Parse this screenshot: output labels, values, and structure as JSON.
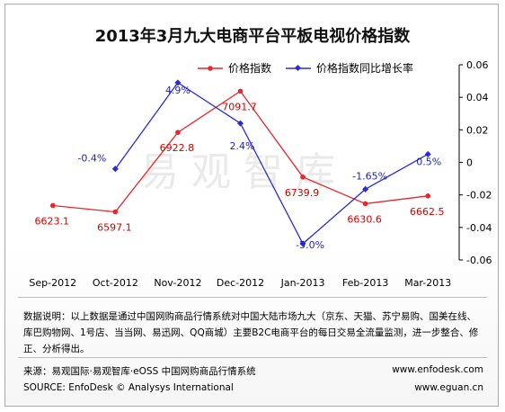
{
  "title": "2013年3月九大电商平台平板电视价格指数",
  "watermark": "易观智库",
  "chart_data": {
    "type": "line",
    "title": "2013年3月九大电商平台平板电视价格指数",
    "categories": [
      "Sep-2012",
      "Oct-2012",
      "Nov-2012",
      "Dec-2012",
      "Jan-2013",
      "Feb-2013",
      "Mar-2013"
    ],
    "series": [
      {
        "name": "价格指数",
        "axis": "left",
        "color": "#e8262b",
        "values": [
          6623.1,
          6597.1,
          6922.8,
          7091.7,
          6739.9,
          6630.6,
          6662.5
        ],
        "labels": [
          "6623.1",
          "6597.1",
          "6922.8",
          "7091.7",
          "6739.9",
          "6630.6",
          "6662.5"
        ]
      },
      {
        "name": "价格指数同比增长率",
        "axis": "right",
        "color": "#2b2bd9",
        "values": [
          null,
          -0.004,
          0.049,
          0.024,
          -0.05,
          -0.0165,
          0.005
        ],
        "labels": [
          "",
          "-0.4%",
          "4.9%",
          "2.4%",
          "-5.0%",
          "-1.65%",
          "0.5%"
        ]
      }
    ],
    "y_left_range": [
      6400,
      7200
    ],
    "y_right_range": [
      -0.06,
      0.06
    ],
    "y_right_ticks": [
      "0.06",
      "0.04",
      "0.02",
      "0",
      "-0.02",
      "-0.04",
      "-0.06"
    ],
    "legend_position": "top",
    "grid": false
  },
  "note": "数据说明：以上数据是通过中国网购商品行情系统对中国大陆市场九大（京东、天猫、苏宁易购、国美在线、库巴购物网、1号店、当当网、易迅网、QQ商城）主要B2C电商平台的每日交易全流量监测，进一步整合、修正、分析得出。",
  "footer": {
    "source_cn": "来源：易观国际·易观智库·eOSS 中国网购商品行情系统",
    "source_en": "SOURCE: EnfoDesk © Analysys International",
    "url1": "www.enfodesk.com",
    "url2": "www.eguan.cn"
  }
}
